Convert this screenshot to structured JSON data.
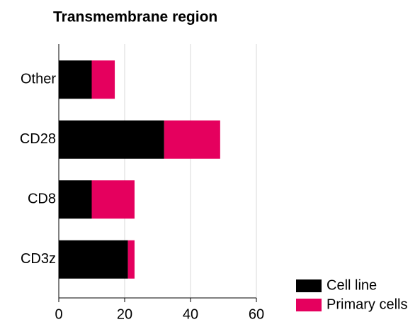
{
  "chart_data": {
    "type": "bar",
    "orientation": "horizontal",
    "stacked": true,
    "title": "Transmembrane region",
    "categories": [
      "Other",
      "CD28",
      "CD8",
      "CD3z"
    ],
    "series": [
      {
        "name": "Cell line",
        "color": "#000000",
        "values": [
          10,
          32,
          10,
          21
        ]
      },
      {
        "name": "Primary cells",
        "color": "#e5005e",
        "values": [
          7,
          17,
          13,
          2
        ]
      }
    ],
    "xlim": [
      0,
      60
    ],
    "xticks": [
      0,
      20,
      40,
      60
    ],
    "grid": true,
    "legend": "lower right"
  }
}
